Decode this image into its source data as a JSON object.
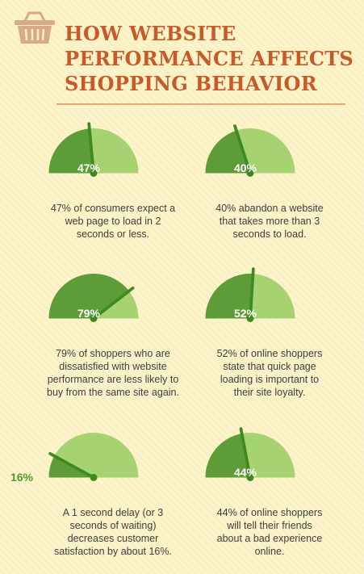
{
  "header": {
    "title_lines": [
      "HOW WEBSITE",
      "PERFORMANCE AFFECTS",
      "SHOPPING BEHAVIOR"
    ],
    "icon": "basket-icon"
  },
  "colors": {
    "title": "#c85a2a",
    "dark_green": "#5e9c37",
    "light_green": "#a6d272",
    "needle": "#3f8a1e",
    "background": "#fbf0bf"
  },
  "stats": [
    {
      "percent": 47,
      "label": "47%",
      "lines": [
        "47% of consumers expect a",
        "web page to load in 2",
        "seconds or less."
      ]
    },
    {
      "percent": 40,
      "label": "40%",
      "lines": [
        "40% abandon a website",
        "that takes more than 3",
        "seconds to load."
      ]
    },
    {
      "percent": 79,
      "label": "79%",
      "lines": [
        "79% of shoppers who are",
        "dissatisfied with website",
        "performance are less likely to",
        "buy from the same site again."
      ]
    },
    {
      "percent": 52,
      "label": "52%",
      "lines": [
        "52% of online shoppers",
        "state that quick page",
        "loading is important to",
        "their site loyalty."
      ]
    },
    {
      "percent": 16,
      "label": "16%",
      "lines": [
        "A 1 second delay (or 3",
        "seconds of waiting)",
        "decreases customer",
        "satisfaction by about 16%."
      ]
    },
    {
      "percent": 44,
      "label": "44%",
      "lines": [
        "44% of online shoppers",
        "will tell their friends",
        "about a bad experience",
        "online."
      ]
    }
  ]
}
